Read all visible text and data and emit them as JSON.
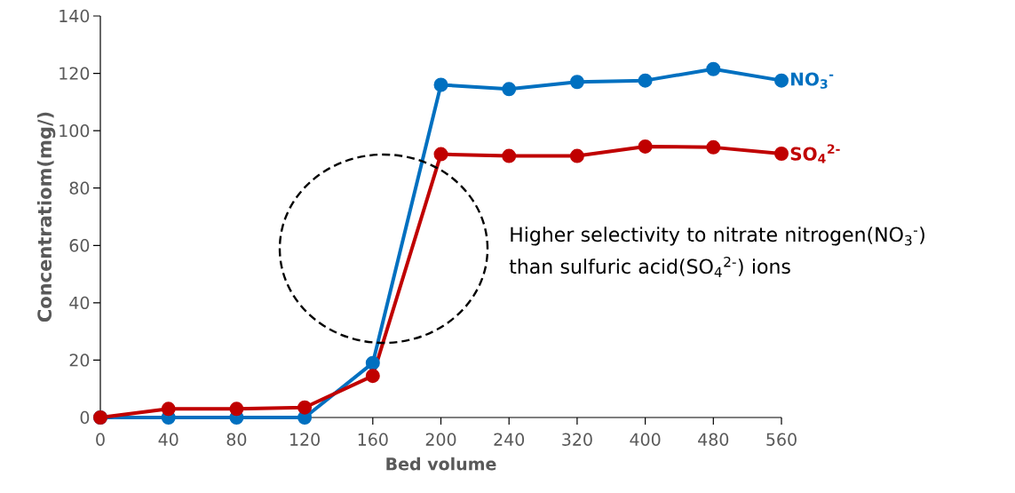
{
  "chart_data": {
    "type": "line",
    "xlabel": "Bed volume",
    "ylabel": "Concentratiom(mg/)",
    "categories": [
      "0",
      "40",
      "80",
      "120",
      "160",
      "200",
      "240",
      "320",
      "400",
      "480",
      "560"
    ],
    "series": [
      {
        "name": "NO$_{3}$$^{-}$",
        "color": "#0070c0",
        "values": [
          0,
          0,
          0,
          0,
          19,
          116,
          114.5,
          117,
          117.5,
          121.5,
          117.5
        ]
      },
      {
        "name": "SO$_{4}$$^{2-}$",
        "color": "#c00000",
        "values": [
          0,
          3,
          3,
          3.5,
          14.5,
          91.8,
          91.2,
          91.2,
          94.5,
          94.2,
          92
        ]
      }
    ],
    "ylim": [
      0,
      140
    ],
    "yticks": [
      0,
      20,
      40,
      60,
      80,
      100,
      120,
      140
    ],
    "marker": "circle",
    "line_style": "solid",
    "grid": false,
    "annotations": [
      "Higher selectivity to nitrate nitrogen(NO$_{3}$$^{-}$) than sulfuric acid(SO$_{4}$$^{2-}$) ions"
    ]
  }
}
